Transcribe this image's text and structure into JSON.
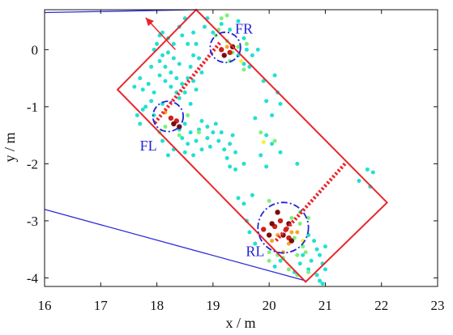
{
  "chart_data": {
    "type": "scatter",
    "title": "",
    "xlabel": "x / m",
    "ylabel": "y / m",
    "xlim": [
      16,
      23
    ],
    "ylim": [
      -4.15,
      0.7
    ],
    "x_ticks": [
      16,
      17,
      18,
      19,
      20,
      21,
      22,
      23
    ],
    "y_ticks": [
      0,
      -1,
      -2,
      -3,
      -4
    ],
    "grid": false,
    "colors": {
      "axes": "#111111",
      "boundary_line": "#2b2bd6",
      "vehicle_box": "#e8262b",
      "axle_line": "#e8262b",
      "wheel_circle": "#2424d8",
      "wheel_label": "#2424d8"
    },
    "boundary_lines": [
      {
        "points": [
          [
            16.0,
            0.65
          ],
          [
            18.7,
            0.7
          ]
        ]
      },
      {
        "points": [
          [
            16.0,
            -2.8
          ],
          [
            20.65,
            -4.05
          ]
        ]
      }
    ],
    "vehicle_box": [
      [
        18.7,
        0.7
      ],
      [
        22.1,
        -2.68
      ],
      [
        20.65,
        -4.07
      ],
      [
        17.3,
        -0.7
      ]
    ],
    "heading_arrow": {
      "from": [
        18.33,
        0.0
      ],
      "to": [
        17.8,
        0.56
      ]
    },
    "axle_lines": [
      {
        "from": [
          19.12,
          0.12
        ],
        "to": [
          17.95,
          -1.3
        ]
      },
      {
        "from": [
          21.35,
          -2.0
        ],
        "to": [
          20.12,
          -3.35
        ]
      }
    ],
    "wheels": [
      {
        "label": "FR",
        "center": [
          19.22,
          0.04
        ],
        "radius": 0.27,
        "label_pos": [
          19.55,
          0.28
        ]
      },
      {
        "label": "FL",
        "center": [
          18.2,
          -1.17
        ],
        "radius": 0.27,
        "label_pos": [
          17.85,
          -1.77
        ]
      },
      {
        "label": "RL",
        "center": [
          20.25,
          -3.12
        ],
        "radius": 0.45,
        "label_pos": [
          19.75,
          -3.62
        ]
      }
    ],
    "series": [
      {
        "color": "#22e0d2",
        "points": [
          [
            18.05,
            -0.2
          ],
          [
            18.15,
            -0.3
          ],
          [
            18.25,
            -0.4
          ],
          [
            18.35,
            -0.5
          ],
          [
            18.45,
            -0.6
          ],
          [
            18.05,
            -0.45
          ],
          [
            18.15,
            -0.55
          ],
          [
            18.25,
            -0.65
          ],
          [
            18.35,
            -0.75
          ],
          [
            17.9,
            -0.3
          ],
          [
            17.85,
            -0.6
          ],
          [
            17.95,
            -0.75
          ],
          [
            17.7,
            -0.5
          ],
          [
            17.75,
            -0.7
          ],
          [
            17.6,
            -0.65
          ],
          [
            18.5,
            -0.75
          ],
          [
            18.55,
            -0.5
          ],
          [
            18.6,
            -0.3
          ],
          [
            18.65,
            -0.1
          ],
          [
            18.55,
            0.1
          ],
          [
            18.45,
            0.25
          ],
          [
            18.4,
            0.4
          ],
          [
            18.5,
            0.55
          ],
          [
            18.65,
            0.3
          ],
          [
            18.7,
            0.1
          ],
          [
            18.75,
            -0.15
          ],
          [
            18.8,
            -0.4
          ],
          [
            18.3,
            0.1
          ],
          [
            18.2,
            0.2
          ],
          [
            18.1,
            0.3
          ],
          [
            18.0,
            0.1
          ],
          [
            17.95,
            0.0
          ],
          [
            18.3,
            -0.15
          ],
          [
            18.2,
            -0.05
          ],
          [
            18.4,
            -0.25
          ],
          [
            18.05,
            0.25
          ],
          [
            18.1,
            -0.1
          ],
          [
            18.65,
            -0.55
          ],
          [
            18.7,
            -0.7
          ],
          [
            18.4,
            -0.85
          ],
          [
            18.1,
            -0.95
          ],
          [
            17.9,
            -0.9
          ],
          [
            17.8,
            -1.0
          ],
          [
            18.6,
            -0.95
          ],
          [
            18.5,
            -1.3
          ],
          [
            18.6,
            -1.45
          ],
          [
            18.7,
            -1.6
          ],
          [
            18.55,
            -1.65
          ],
          [
            18.45,
            -1.55
          ],
          [
            18.4,
            -1.4
          ],
          [
            18.75,
            -1.4
          ],
          [
            18.8,
            -1.25
          ],
          [
            18.9,
            -1.35
          ],
          [
            19.0,
            -1.45
          ],
          [
            18.9,
            -1.55
          ],
          [
            19.05,
            -1.3
          ],
          [
            19.1,
            -1.6
          ],
          [
            19.15,
            -1.45
          ],
          [
            18.95,
            -1.7
          ],
          [
            19.2,
            -1.75
          ],
          [
            19.3,
            -1.65
          ],
          [
            19.35,
            -1.5
          ],
          [
            19.4,
            -1.8
          ],
          [
            19.25,
            -1.9
          ],
          [
            18.8,
            -1.75
          ],
          [
            18.65,
            -1.85
          ],
          [
            18.5,
            -1.8
          ],
          [
            18.3,
            -1.75
          ],
          [
            18.2,
            -1.85
          ],
          [
            18.1,
            -1.6
          ],
          [
            17.7,
            -1.3
          ],
          [
            17.65,
            -1.15
          ],
          [
            17.75,
            -1.05
          ],
          [
            17.95,
            -1.15
          ],
          [
            18.85,
            0.4
          ],
          [
            18.9,
            0.55
          ],
          [
            19.0,
            0.3
          ],
          [
            19.15,
            0.45
          ],
          [
            19.3,
            0.35
          ],
          [
            19.45,
            0.5
          ],
          [
            19.55,
            0.2
          ],
          [
            19.6,
            0.0
          ],
          [
            19.7,
            -0.1
          ],
          [
            19.8,
            0.0
          ],
          [
            19.65,
            -0.3
          ],
          [
            19.55,
            -0.25
          ],
          [
            19.45,
            -0.1
          ],
          [
            19.9,
            -0.55
          ],
          [
            20.1,
            -0.45
          ],
          [
            20.15,
            -0.75
          ],
          [
            19.95,
            -0.9
          ],
          [
            20.05,
            -1.15
          ],
          [
            20.2,
            -0.95
          ],
          [
            19.75,
            -1.2
          ],
          [
            19.95,
            -1.5
          ],
          [
            20.05,
            -1.65
          ],
          [
            20.2,
            -1.8
          ],
          [
            19.85,
            -1.85
          ],
          [
            19.55,
            -2.0
          ],
          [
            19.4,
            -2.1
          ],
          [
            19.3,
            -2.05
          ],
          [
            19.95,
            -2.05
          ],
          [
            20.5,
            -2.0
          ],
          [
            21.6,
            -2.3
          ],
          [
            21.8,
            -2.4
          ],
          [
            21.75,
            -2.1
          ],
          [
            21.85,
            -2.15
          ],
          [
            19.45,
            -2.6
          ],
          [
            19.55,
            -2.7
          ],
          [
            19.6,
            -3.0
          ],
          [
            19.65,
            -3.2
          ],
          [
            19.75,
            -3.4
          ],
          [
            19.7,
            -2.55
          ],
          [
            20.7,
            -3.25
          ],
          [
            20.8,
            -3.35
          ],
          [
            20.85,
            -3.5
          ],
          [
            20.9,
            -3.6
          ],
          [
            20.95,
            -3.75
          ],
          [
            21.0,
            -3.85
          ],
          [
            20.9,
            -4.05
          ],
          [
            20.95,
            -4.1
          ],
          [
            20.75,
            -3.7
          ],
          [
            20.7,
            -3.85
          ],
          [
            20.85,
            -3.95
          ],
          [
            20.6,
            -3.6
          ],
          [
            20.55,
            -3.75
          ],
          [
            20.45,
            -3.9
          ],
          [
            21.0,
            -3.45
          ],
          [
            20.1,
            -3.8
          ],
          [
            20.2,
            -3.7
          ]
        ]
      },
      {
        "color": "#7ef07a",
        "points": [
          [
            19.45,
            0.05
          ],
          [
            19.55,
            -0.35
          ],
          [
            19.6,
            0.1
          ],
          [
            19.25,
            0.6
          ],
          [
            19.25,
            0.15
          ],
          [
            19.85,
            -1.45
          ],
          [
            20.1,
            -1.6
          ],
          [
            18.75,
            -1.45
          ],
          [
            18.55,
            -1.15
          ],
          [
            20.55,
            -3.05
          ],
          [
            20.45,
            -3.3
          ],
          [
            20.6,
            -3.45
          ],
          [
            20.65,
            -3.55
          ],
          [
            20.5,
            -3.6
          ],
          [
            20.7,
            -3.9
          ],
          [
            20.5,
            -3.95
          ],
          [
            20.25,
            -3.65
          ],
          [
            20.35,
            -3.85
          ],
          [
            20.4,
            -2.95
          ],
          [
            20.55,
            -2.85
          ],
          [
            20.7,
            -2.95
          ],
          [
            20.0,
            -3.55
          ],
          [
            20.15,
            -3.6
          ],
          [
            20.0,
            -3.7
          ],
          [
            18.4,
            -1.5
          ],
          [
            18.05,
            -1.45
          ],
          [
            18.15,
            -1.35
          ],
          [
            19.1,
            0.35
          ],
          [
            19.05,
            0.25
          ],
          [
            19.15,
            0.55
          ],
          [
            20.0,
            -2.65
          ],
          [
            19.35,
            -0.05
          ],
          [
            19.3,
            -0.2
          ]
        ]
      },
      {
        "color": "#f2f23a",
        "points": [
          [
            19.9,
            -1.62
          ],
          [
            20.6,
            -3.35
          ],
          [
            19.5,
            -0.2
          ]
        ]
      },
      {
        "color": "#f5a623",
        "points": [
          [
            20.4,
            -3.2
          ],
          [
            20.35,
            -3.4
          ],
          [
            20.15,
            -3.25
          ],
          [
            20.5,
            -3.2
          ],
          [
            20.25,
            -3.55
          ],
          [
            20.05,
            -3.35
          ],
          [
            18.15,
            -1.1
          ],
          [
            19.25,
            0.05
          ]
        ]
      },
      {
        "color": "#c8231c",
        "points": [
          [
            20.2,
            -3.0
          ],
          [
            20.3,
            -3.15
          ],
          [
            20.1,
            -3.1
          ],
          [
            20.35,
            -3.3
          ],
          [
            19.9,
            -3.15
          ],
          [
            18.25,
            -1.2
          ],
          [
            18.35,
            -1.25
          ],
          [
            19.15,
            0.0
          ],
          [
            19.3,
            -0.05
          ]
        ]
      },
      {
        "color": "#7a0d0d",
        "points": [
          [
            20.15,
            -2.85
          ],
          [
            20.05,
            -3.05
          ],
          [
            20.35,
            -3.05
          ],
          [
            20.25,
            -3.25
          ],
          [
            20.0,
            -3.25
          ],
          [
            20.4,
            -3.35
          ],
          [
            18.3,
            -1.3
          ],
          [
            18.4,
            -1.35
          ],
          [
            19.2,
            -0.1
          ],
          [
            19.35,
            0.05
          ]
        ]
      }
    ]
  }
}
